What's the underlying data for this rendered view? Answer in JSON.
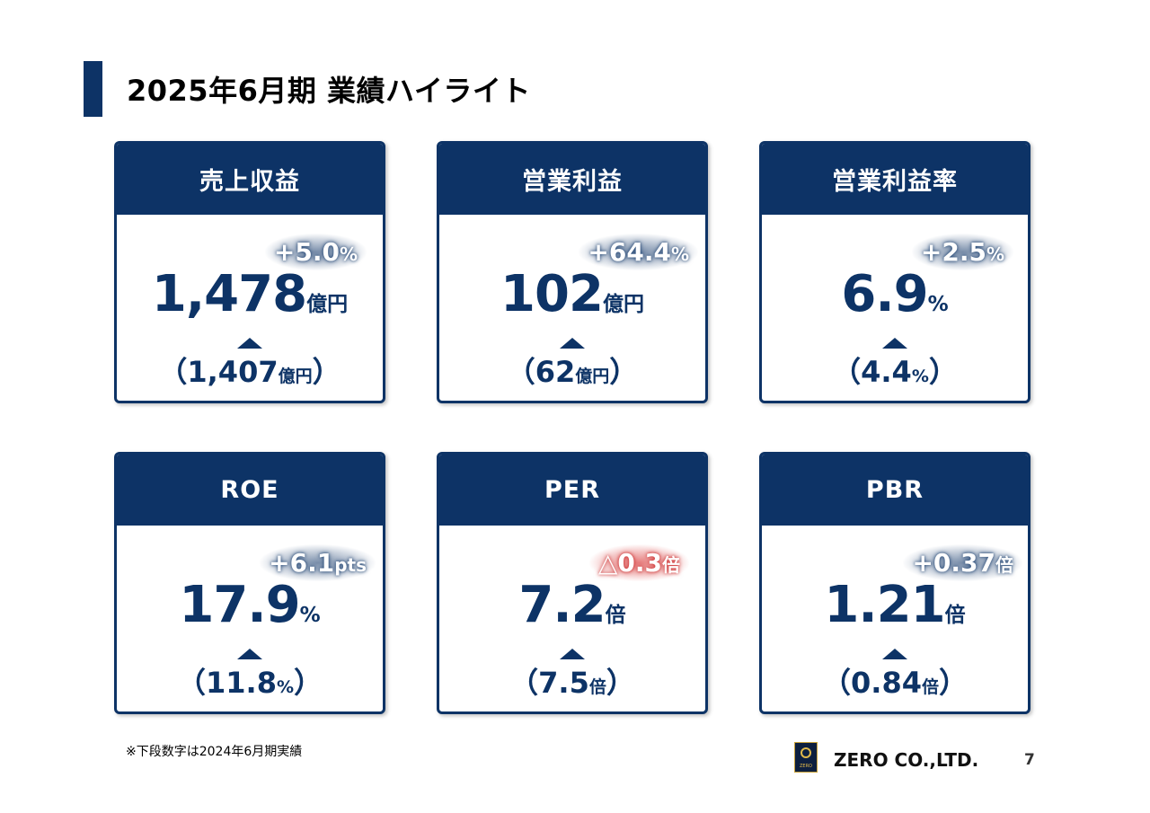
{
  "title": "2025年6月期 業績ハイライト",
  "cards": [
    {
      "label": "売上収益",
      "change_value": "+5.0",
      "change_unit": "%",
      "value": "1,478",
      "unit": "億円",
      "prev_value": "1,407",
      "prev_unit": "億円",
      "change_color": "#0d3366"
    },
    {
      "label": "営業利益",
      "change_value": "+64.4",
      "change_unit": "%",
      "value": "102",
      "unit": "億円",
      "prev_value": "62",
      "prev_unit": "億円",
      "change_color": "#0d3366"
    },
    {
      "label": "営業利益率",
      "change_value": "+2.5",
      "change_unit": "%",
      "value": "6.9",
      "unit": "%",
      "prev_value": "4.4",
      "prev_unit": "%",
      "change_color": "#0d3366"
    },
    {
      "label": "ROE",
      "change_value": "+6.1",
      "change_unit": "pts",
      "value": "17.9",
      "unit": "%",
      "prev_value": "11.8",
      "prev_unit": "%",
      "change_color": "#0d3366"
    },
    {
      "label": "PER",
      "change_value": "△0.3",
      "change_unit": "倍",
      "value": "7.2",
      "unit": "倍",
      "prev_value": "7.5",
      "prev_unit": "倍",
      "change_color": "#d72828"
    },
    {
      "label": "PBR",
      "change_value": "+0.37",
      "change_unit": "倍",
      "value": "1.21",
      "unit": "倍",
      "prev_value": "0.84",
      "prev_unit": "倍",
      "change_color": "#0d3366"
    }
  ],
  "paren_open": "（",
  "paren_close": "）",
  "footnote": "※下段数字は2024年6月期実績",
  "company": "ZERO CO.,LTD.",
  "logo_text": "ZERO",
  "page_number": "7"
}
